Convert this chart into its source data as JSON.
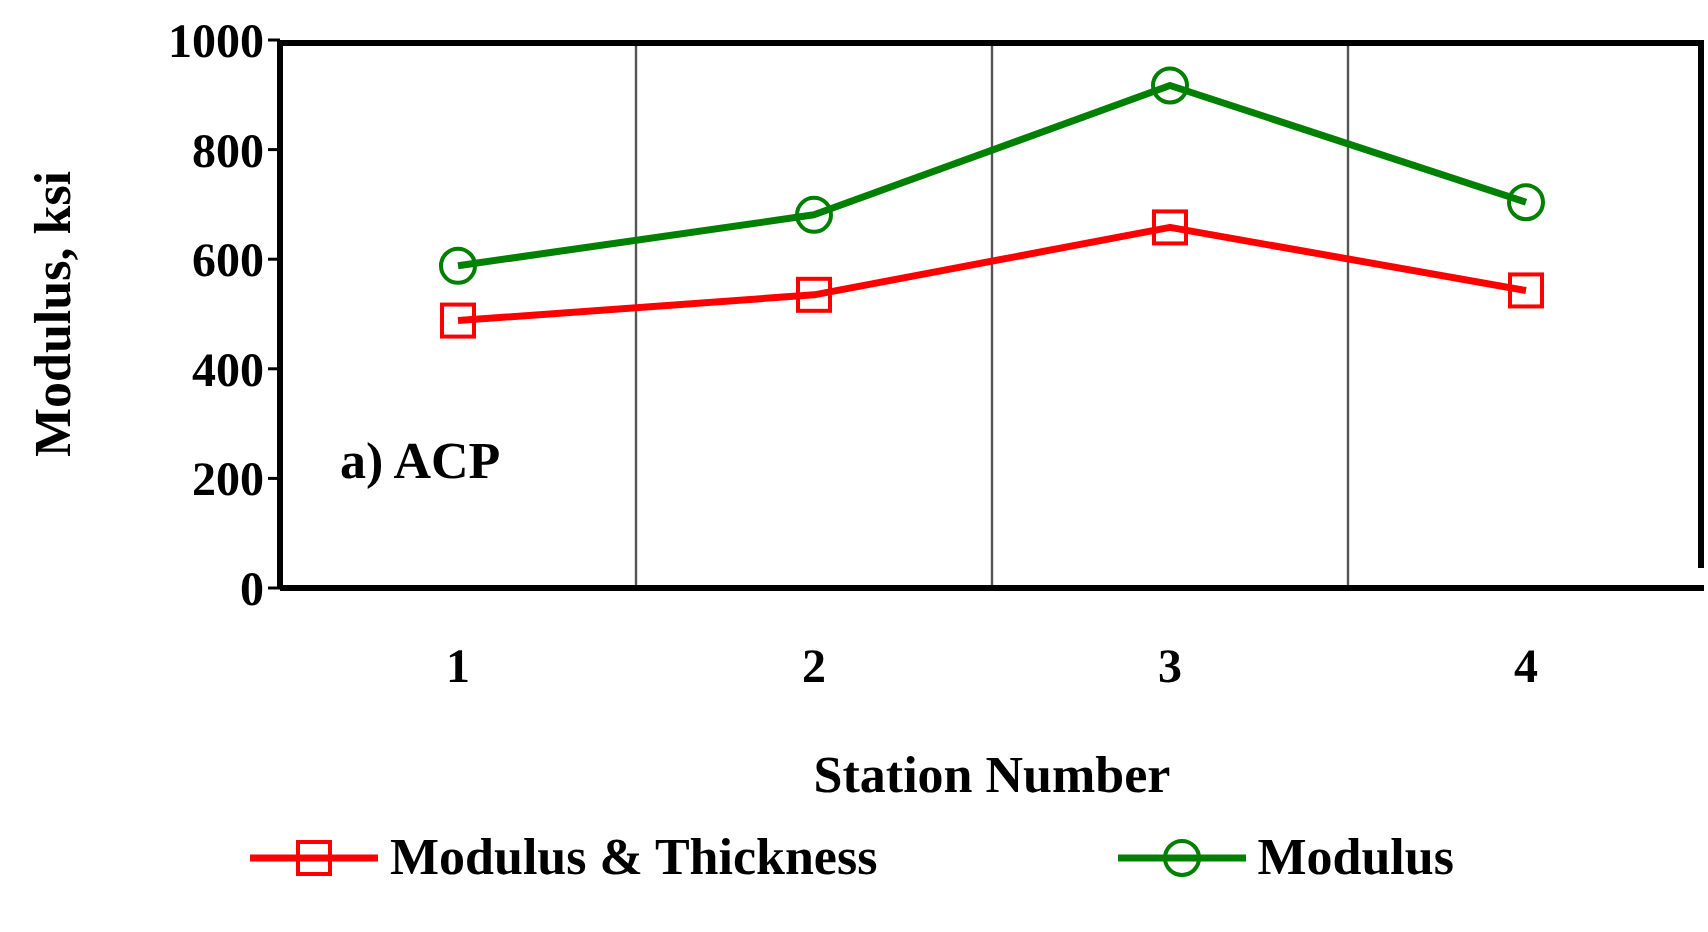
{
  "chart_data": {
    "type": "line",
    "categories": [
      "1",
      "2",
      "3",
      "4"
    ],
    "xlabel": "Station Number",
    "ylabel": "Modulus, ksi",
    "ylim": [
      0,
      1000
    ],
    "yticks": [
      0,
      200,
      400,
      600,
      800,
      1000
    ],
    "grid": "x",
    "legend": "bottom",
    "annotations": [
      "a) ACP"
    ],
    "series": [
      {
        "name": "Modulus & Thickness",
        "color": "#ff0000",
        "marker": "square",
        "values": [
          488,
          535,
          658,
          543
        ]
      },
      {
        "name": "Modulus",
        "color": "#008000",
        "marker": "circle",
        "values": [
          588,
          681,
          917,
          704
        ]
      }
    ]
  }
}
